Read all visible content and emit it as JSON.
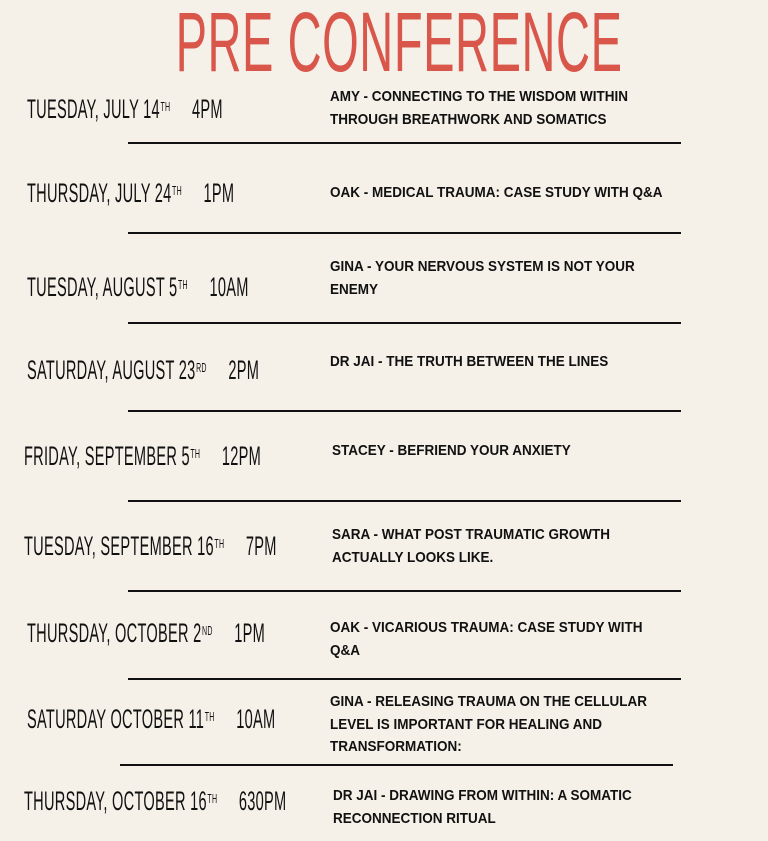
{
  "title": "PRE CONFERENCE",
  "colors": {
    "title": "#d9574a",
    "background": "#f5f0e8",
    "text": "#111111"
  },
  "sessions": [
    {
      "day": "TUESDAY, JULY 14",
      "suffix": "TH",
      "time": "4PM",
      "description": "AMY - CONNECTING TO THE WISDOM WITHIN\nTHROUGH BREATHWORK AND SOMATICS"
    },
    {
      "day": "THURSDAY, JULY 24",
      "suffix": "TH",
      "time": "1PM",
      "description": "OAK - MEDICAL TRAUMA: CASE STUDY WITH Q&A"
    },
    {
      "day": "TUESDAY, AUGUST 5",
      "suffix": "TH",
      "time": "10AM",
      "description": "GINA - YOUR NERVOUS SYSTEM IS NOT YOUR\nENEMY"
    },
    {
      "day": "SATURDAY, AUGUST 23",
      "suffix": "RD",
      "time": "2PM",
      "description": "DR JAI -  THE TRUTH BETWEEN THE LINES"
    },
    {
      "day": "FRIDAY, SEPTEMBER 5",
      "suffix": "TH",
      "time": "12PM",
      "description": "STACEY - BEFRIEND YOUR ANXIETY"
    },
    {
      "day": "TUESDAY, SEPTEMBER 16",
      "suffix": "TH",
      "time": "7PM",
      "description": "SARA - WHAT POST TRAUMATIC GROWTH\nACTUALLY LOOKS LIKE."
    },
    {
      "day": "THURSDAY, OCTOBER 2",
      "suffix": "ND",
      "time": "1PM",
      "description": "OAK - VICARIOUS TRAUMA: CASE STUDY WITH\nQ&A"
    },
    {
      "day": "SATURDAY OCTOBER 11",
      "suffix": "TH",
      "time": "10AM",
      "description": "GINA - RELEASING TRAUMA ON THE CELLULAR\nLEVEL IS IMPORTANT FOR HEALING AND\nTRANSFORMATION:"
    },
    {
      "day": "THURSDAY, OCTOBER 16",
      "suffix": "TH",
      "time": "630PM",
      "description": "DR JAI - DRAWING FROM WITHIN: A SOMATIC\nRECONNECTION RITUAL"
    }
  ]
}
